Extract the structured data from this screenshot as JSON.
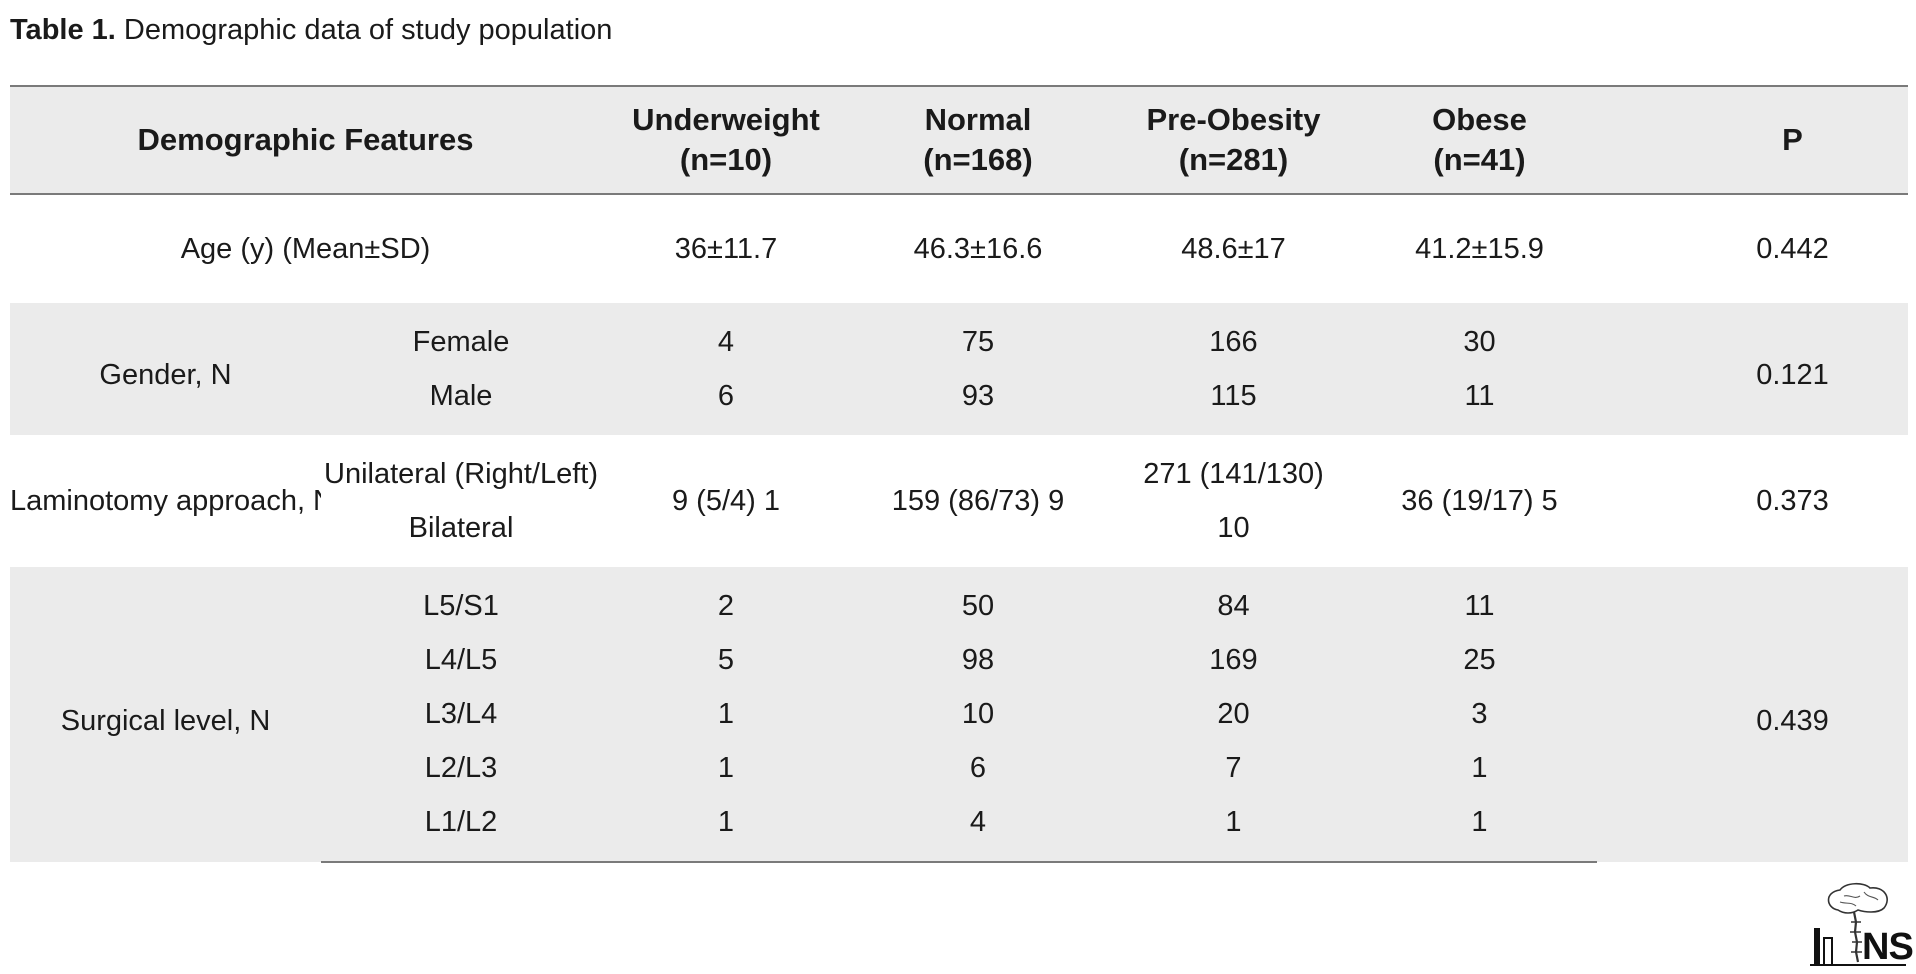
{
  "caption": {
    "label": "Table 1.",
    "text": "Demographic data of study population"
  },
  "headers": {
    "feature": "Demographic Features",
    "underweight": "Underweight",
    "underweight_n": "(n=10)",
    "normal": "Normal",
    "normal_n": "(n=168)",
    "preobesity": "Pre-Obesity",
    "preobesity_n": "(n=281)",
    "obese": "Obese",
    "obese_n": "(n=41)",
    "p": "P"
  },
  "rows": {
    "age": {
      "label": "Age (y) (Mean±SD)",
      "underweight": "36±11.7",
      "normal": "46.3±16.6",
      "preobesity": "48.6±17",
      "obese": "41.2±15.9",
      "p": "0.442"
    },
    "gender": {
      "label": "Gender, N",
      "p": "0.121",
      "female": {
        "label": "Female",
        "underweight": "4",
        "normal": "75",
        "preobesity": "166",
        "obese": "30"
      },
      "male": {
        "label": "Male",
        "underweight": "6",
        "normal": "93",
        "preobesity": "115",
        "obese": "11"
      }
    },
    "laminotomy": {
      "label": "Laminotomy approach, N",
      "p": "0.373",
      "sub1": "Unilateral (Right/Left)",
      "sub2": "Bilateral",
      "underweight": "9 (5/4) 1",
      "normal": "159 (86/73) 9",
      "preobesity_1": "271 (141/130)",
      "preobesity_2": "10",
      "obese": "36 (19/17) 5"
    },
    "surgical": {
      "label": "Surgical level, N",
      "p": "0.439",
      "levels": [
        {
          "label": "L5/S1",
          "underweight": "2",
          "normal": "50",
          "preobesity": "84",
          "obese": "11"
        },
        {
          "label": "L4/L5",
          "underweight": "5",
          "normal": "98",
          "preobesity": "169",
          "obese": "25"
        },
        {
          "label": "L3/L4",
          "underweight": "1",
          "normal": "10",
          "preobesity": "20",
          "obese": "3"
        },
        {
          "label": "L2/L3",
          "underweight": "1",
          "normal": "6",
          "preobesity": "7",
          "obese": "1"
        },
        {
          "label": "L1/L2",
          "underweight": "1",
          "normal": "4",
          "preobesity": "1",
          "obese": "1"
        }
      ]
    }
  },
  "logo": {
    "text": "NS",
    "icon": "brain-spine-logo-icon"
  }
}
